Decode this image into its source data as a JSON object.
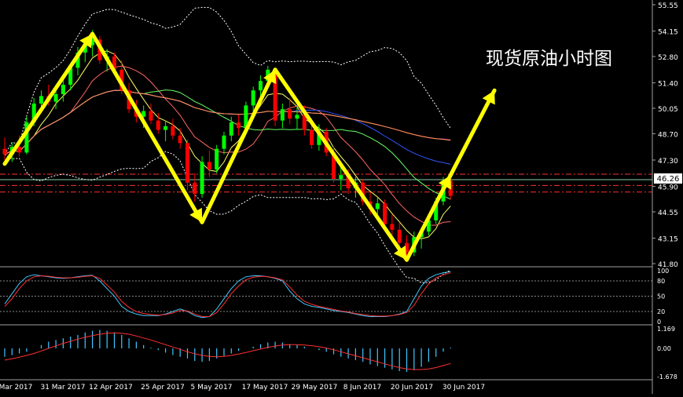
{
  "chart_title": "现货原油小时图",
  "current_price_label": "46.26",
  "colors": {
    "background": "#000000",
    "bull_candle": "#00ff00",
    "bear_candle": "#ff0000",
    "axis_text": "#ffffff",
    "arrow": "#ffff00",
    "price_box": "#ffffff",
    "separator": "#a0a0a0"
  },
  "chart_data": [
    {
      "type": "candlestick",
      "ylim": [
        41.8,
        55.55
      ],
      "y_ticks": [
        "55.55",
        "54.15",
        "52.80",
        "51.40",
        "50.05",
        "48.70",
        "47.30",
        "45.90",
        "44.55",
        "43.15",
        "41.80"
      ],
      "x_tick_labels": [
        "Mar 2017",
        "31 Mar 2017",
        "12 Apr 2017",
        "25 Apr 2017",
        "5 May 2017",
        "17 May 2017",
        "29 May 2017",
        "8 Jun 2017",
        "20 Jun 2017",
        "30 Jun 2017"
      ],
      "candles": [
        [
          47.9,
          48.5,
          47.3,
          47.6
        ],
        [
          47.6,
          48.2,
          47.2,
          48.0
        ],
        [
          48.0,
          48.6,
          47.5,
          47.7
        ],
        [
          47.7,
          49.6,
          47.6,
          49.3
        ],
        [
          49.3,
          50.6,
          49.1,
          50.3
        ],
        [
          50.3,
          51.0,
          49.8,
          50.7
        ],
        [
          50.7,
          51.3,
          50.2,
          50.4
        ],
        [
          50.4,
          51.1,
          50.0,
          50.8
        ],
        [
          50.8,
          51.6,
          50.4,
          51.3
        ],
        [
          51.3,
          52.4,
          51.0,
          52.2
        ],
        [
          52.2,
          53.3,
          51.8,
          53.0
        ],
        [
          53.0,
          53.8,
          52.5,
          53.4
        ],
        [
          53.4,
          54.2,
          52.8,
          53.7
        ],
        [
          53.7,
          53.9,
          52.4,
          52.6
        ],
        [
          52.6,
          53.2,
          52.0,
          52.8
        ],
        [
          52.8,
          53.0,
          51.9,
          52.1
        ],
        [
          52.1,
          52.6,
          50.8,
          51.0
        ],
        [
          51.0,
          51.4,
          49.8,
          50.0
        ],
        [
          50.0,
          50.5,
          49.3,
          49.6
        ],
        [
          49.6,
          50.2,
          49.0,
          49.9
        ],
        [
          49.9,
          50.3,
          49.2,
          49.4
        ],
        [
          49.4,
          49.8,
          48.7,
          48.9
        ],
        [
          48.9,
          49.4,
          48.3,
          49.1
        ],
        [
          49.1,
          49.5,
          48.4,
          48.6
        ],
        [
          48.6,
          49.0,
          47.9,
          48.2
        ],
        [
          48.2,
          48.4,
          45.7,
          46.1
        ],
        [
          46.1,
          46.6,
          45.1,
          45.5
        ],
        [
          45.5,
          47.5,
          45.3,
          47.2
        ],
        [
          47.2,
          47.8,
          46.4,
          46.8
        ],
        [
          46.8,
          48.1,
          46.6,
          47.9
        ],
        [
          47.9,
          48.8,
          47.6,
          48.6
        ],
        [
          48.6,
          49.6,
          48.3,
          49.3
        ],
        [
          49.3,
          49.7,
          48.6,
          49.0
        ],
        [
          49.0,
          50.4,
          48.8,
          50.2
        ],
        [
          50.2,
          51.2,
          49.9,
          51.0
        ],
        [
          51.0,
          51.8,
          50.7,
          51.5
        ],
        [
          51.5,
          52.3,
          51.3,
          52.1
        ],
        [
          52.1,
          52.2,
          49.1,
          49.4
        ],
        [
          49.4,
          50.3,
          49.0,
          50.0
        ],
        [
          50.0,
          50.6,
          49.2,
          49.5
        ],
        [
          49.5,
          50.1,
          48.9,
          49.7
        ],
        [
          49.7,
          50.2,
          48.6,
          48.9
        ],
        [
          48.9,
          49.3,
          47.9,
          48.1
        ],
        [
          48.1,
          49.2,
          47.8,
          48.8
        ],
        [
          48.8,
          49.0,
          47.5,
          47.7
        ],
        [
          47.7,
          48.0,
          46.1,
          46.3
        ],
        [
          46.3,
          46.9,
          45.7,
          46.5
        ],
        [
          46.5,
          46.8,
          45.5,
          45.8
        ],
        [
          45.8,
          46.4,
          45.3,
          46.1
        ],
        [
          46.1,
          46.3,
          44.9,
          45.1
        ],
        [
          45.1,
          45.6,
          44.4,
          44.7
        ],
        [
          44.7,
          45.3,
          44.2,
          45.0
        ],
        [
          45.0,
          45.2,
          43.7,
          43.9
        ],
        [
          43.9,
          44.4,
          43.3,
          43.6
        ],
        [
          43.6,
          44.0,
          42.7,
          42.9
        ],
        [
          42.9,
          43.3,
          42.0,
          42.4
        ],
        [
          42.4,
          43.5,
          42.2,
          43.2
        ],
        [
          43.2,
          43.7,
          42.6,
          43.5
        ],
        [
          43.5,
          44.3,
          43.3,
          44.1
        ],
        [
          44.1,
          45.3,
          43.9,
          45.1
        ],
        [
          45.1,
          46.4,
          44.9,
          46.2
        ],
        [
          46.2,
          46.5,
          45.2,
          45.4
        ]
      ],
      "horizontal_levels": [
        46.55,
        46.26,
        45.95,
        45.6
      ],
      "arrows": [
        [
          [
            0,
            47.1
          ],
          [
            12,
            54.0
          ]
        ],
        [
          [
            12,
            54.0
          ],
          [
            27,
            44.0
          ]
        ],
        [
          [
            27,
            44.0
          ],
          [
            37,
            52.1
          ]
        ],
        [
          [
            37,
            52.1
          ],
          [
            55,
            42.0
          ]
        ],
        [
          [
            55,
            42.0
          ],
          [
            61,
            46.5
          ]
        ],
        [
          [
            61,
            46.5
          ],
          [
            67,
            51.0
          ]
        ]
      ]
    },
    {
      "type": "line",
      "indicator": "stochastic",
      "ylim": [
        0,
        100
      ],
      "y_ticks": [
        "100",
        "80",
        "50",
        "20",
        "0"
      ],
      "series": [
        {
          "values": [
            35,
            55,
            75,
            88,
            92,
            90,
            88,
            86,
            85,
            86,
            88,
            90,
            91,
            80,
            65,
            50,
            30,
            20,
            15,
            12,
            12,
            12,
            15,
            20,
            25,
            20,
            12,
            8,
            10,
            25,
            45,
            65,
            80,
            88,
            90,
            90,
            88,
            85,
            80,
            60,
            45,
            35,
            30,
            28,
            25,
            22,
            20,
            18,
            15,
            12,
            10,
            10,
            10,
            12,
            15,
            20,
            45,
            70,
            85,
            92,
            96,
            98
          ]
        },
        {
          "values": [
            30,
            45,
            65,
            80,
            88,
            90,
            89,
            87,
            86,
            86,
            87,
            89,
            90,
            85,
            72,
            58,
            40,
            28,
            20,
            16,
            14,
            13,
            14,
            17,
            22,
            21,
            15,
            10,
            10,
            18,
            35,
            55,
            70,
            82,
            87,
            89,
            88,
            86,
            82,
            68,
            52,
            40,
            34,
            30,
            27,
            24,
            21,
            19,
            16,
            14,
            12,
            11,
            11,
            12,
            14,
            18,
            32,
            55,
            74,
            86,
            92,
            96
          ]
        }
      ]
    },
    {
      "type": "bar",
      "indicator": "macd",
      "ylim": [
        -1.678,
        1.169
      ],
      "y_ticks": [
        "1.169",
        "0.00",
        "-1.678"
      ],
      "values": [
        -0.5,
        -0.4,
        -0.3,
        -0.2,
        0.0,
        0.2,
        0.4,
        0.5,
        0.6,
        0.7,
        0.8,
        0.95,
        1.05,
        1.1,
        1.05,
        0.95,
        0.8,
        0.6,
        0.4,
        0.2,
        0.05,
        -0.1,
        -0.25,
        -0.4,
        -0.5,
        -0.6,
        -0.75,
        -0.8,
        -0.75,
        -0.6,
        -0.45,
        -0.3,
        -0.15,
        0.0,
        0.1,
        0.25,
        0.35,
        0.4,
        0.35,
        0.25,
        0.2,
        0.1,
        0.0,
        -0.1,
        -0.2,
        -0.35,
        -0.5,
        -0.6,
        -0.7,
        -0.8,
        -0.95,
        -1.05,
        -1.15,
        -1.25,
        -1.35,
        -1.4,
        -1.3,
        -1.1,
        -0.8,
        -0.5,
        -0.2,
        0.05
      ],
      "signal": [
        -0.7,
        -0.62,
        -0.52,
        -0.42,
        -0.3,
        -0.15,
        0.0,
        0.15,
        0.3,
        0.42,
        0.55,
        0.66,
        0.76,
        0.84,
        0.9,
        0.92,
        0.9,
        0.84,
        0.74,
        0.62,
        0.5,
        0.36,
        0.22,
        0.08,
        -0.06,
        -0.2,
        -0.32,
        -0.42,
        -0.48,
        -0.5,
        -0.48,
        -0.42,
        -0.34,
        -0.24,
        -0.14,
        -0.04,
        0.06,
        0.14,
        0.2,
        0.22,
        0.22,
        0.2,
        0.16,
        0.1,
        0.02,
        -0.08,
        -0.2,
        -0.32,
        -0.44,
        -0.56,
        -0.68,
        -0.8,
        -0.92,
        -1.04,
        -1.14,
        -1.22,
        -1.26,
        -1.26,
        -1.22,
        -1.14,
        -1.02,
        -0.9
      ]
    }
  ]
}
